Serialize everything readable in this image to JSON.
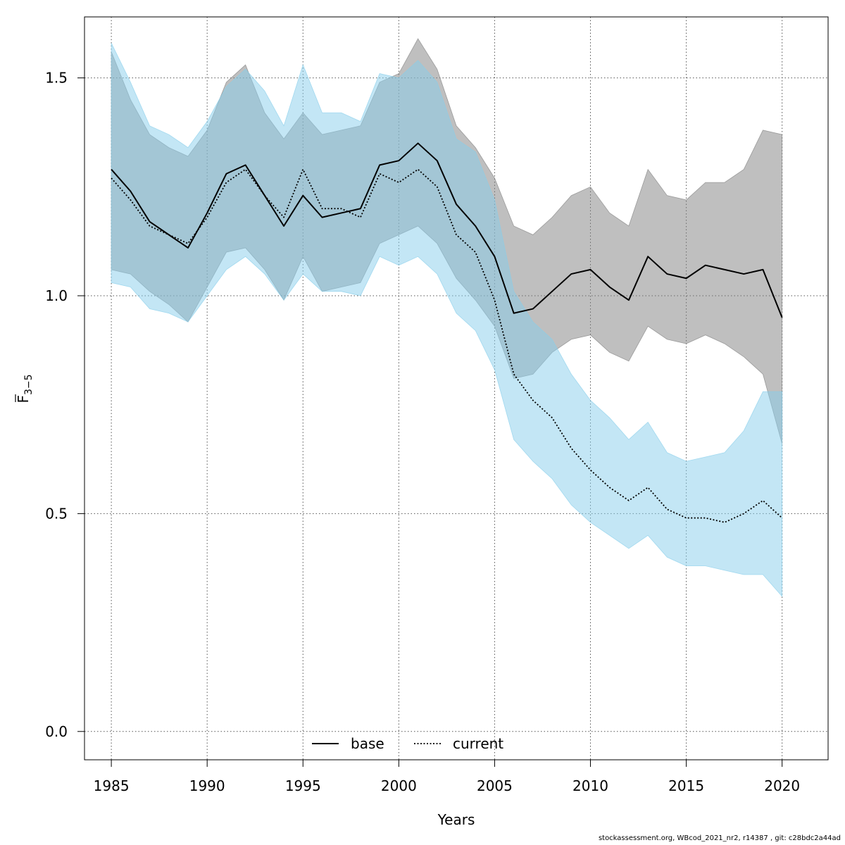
{
  "chart_data": {
    "type": "line",
    "xlabel": "Years",
    "ylabel": "F",
    "ylabel_sub": "3−5",
    "xlim": [
      1983.6,
      2022.4
    ],
    "ylim": [
      -0.065,
      1.64
    ],
    "xticks": [
      1985,
      1990,
      1995,
      2000,
      2005,
      2010,
      2015,
      2020
    ],
    "yticks": [
      0.0,
      0.5,
      1.0,
      1.5
    ],
    "ytick_labels": [
      "0.0",
      "0.5",
      "1.0",
      "1.5"
    ],
    "grid": true,
    "legend_placement": "bottom",
    "x": [
      1985,
      1986,
      1987,
      1988,
      1989,
      1990,
      1991,
      1992,
      1993,
      1994,
      1995,
      1996,
      1997,
      1998,
      1999,
      2000,
      2001,
      2002,
      2003,
      2004,
      2005,
      2006,
      2007,
      2008,
      2009,
      2010,
      2011,
      2012,
      2013,
      2014,
      2015,
      2016,
      2017,
      2018,
      2019,
      2020
    ],
    "series": [
      {
        "name": "base",
        "style": "solid",
        "color": "#000000",
        "band_color": "#808080",
        "values": [
          1.29,
          1.24,
          1.17,
          1.14,
          1.11,
          1.19,
          1.28,
          1.3,
          1.23,
          1.16,
          1.23,
          1.18,
          1.19,
          1.2,
          1.3,
          1.31,
          1.35,
          1.31,
          1.21,
          1.16,
          1.09,
          0.96,
          0.97,
          1.01,
          1.05,
          1.06,
          1.02,
          0.99,
          1.09,
          1.05,
          1.04,
          1.07,
          1.06,
          1.05,
          1.06,
          0.95
        ],
        "lower": [
          1.06,
          1.05,
          1.01,
          0.98,
          0.94,
          1.02,
          1.1,
          1.11,
          1.06,
          0.99,
          1.09,
          1.01,
          1.02,
          1.03,
          1.12,
          1.14,
          1.16,
          1.12,
          1.04,
          0.99,
          0.93,
          0.81,
          0.82,
          0.87,
          0.9,
          0.91,
          0.87,
          0.85,
          0.93,
          0.9,
          0.89,
          0.91,
          0.89,
          0.86,
          0.82,
          0.66
        ],
        "upper": [
          1.56,
          1.45,
          1.37,
          1.34,
          1.32,
          1.38,
          1.49,
          1.53,
          1.42,
          1.36,
          1.42,
          1.37,
          1.38,
          1.39,
          1.49,
          1.51,
          1.59,
          1.52,
          1.39,
          1.34,
          1.27,
          1.16,
          1.14,
          1.18,
          1.23,
          1.25,
          1.19,
          1.16,
          1.29,
          1.23,
          1.22,
          1.26,
          1.26,
          1.29,
          1.38,
          1.37
        ]
      },
      {
        "name": "current",
        "style": "dotted",
        "color": "#000000",
        "band_color": "#87CEEB",
        "values": [
          1.27,
          1.22,
          1.16,
          1.14,
          1.12,
          1.18,
          1.26,
          1.29,
          1.23,
          1.18,
          1.29,
          1.2,
          1.2,
          1.18,
          1.28,
          1.26,
          1.29,
          1.25,
          1.14,
          1.1,
          0.99,
          0.82,
          0.76,
          0.72,
          0.65,
          0.6,
          0.56,
          0.53,
          0.56,
          0.51,
          0.49,
          0.49,
          0.48,
          0.5,
          0.53,
          0.49
        ],
        "lower": [
          1.03,
          1.02,
          0.97,
          0.96,
          0.94,
          1.0,
          1.06,
          1.09,
          1.05,
          0.99,
          1.05,
          1.01,
          1.01,
          1.0,
          1.09,
          1.07,
          1.09,
          1.05,
          0.96,
          0.92,
          0.83,
          0.67,
          0.62,
          0.58,
          0.52,
          0.48,
          0.45,
          0.42,
          0.45,
          0.4,
          0.38,
          0.38,
          0.37,
          0.36,
          0.36,
          0.31
        ],
        "upper": [
          1.58,
          1.49,
          1.39,
          1.37,
          1.34,
          1.4,
          1.48,
          1.52,
          1.47,
          1.39,
          1.53,
          1.42,
          1.42,
          1.4,
          1.51,
          1.5,
          1.54,
          1.49,
          1.36,
          1.33,
          1.22,
          1.01,
          0.94,
          0.9,
          0.82,
          0.76,
          0.72,
          0.67,
          0.71,
          0.64,
          0.62,
          0.63,
          0.64,
          0.69,
          0.78,
          0.78
        ]
      }
    ]
  },
  "footer": "stockassessment.org, WBcod_2021_nr2, r14387 , git: c28bdc2a44ad"
}
